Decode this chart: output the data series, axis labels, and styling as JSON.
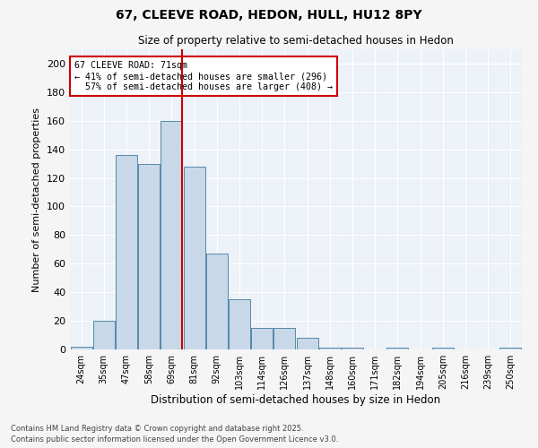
{
  "title1": "67, CLEEVE ROAD, HEDON, HULL, HU12 8PY",
  "title2": "Size of property relative to semi-detached houses in Hedon",
  "xlabel": "Distribution of semi-detached houses by size in Hedon",
  "ylabel": "Number of semi-detached properties",
  "categories": [
    "24sqm",
    "35sqm",
    "47sqm",
    "58sqm",
    "69sqm",
    "81sqm",
    "92sqm",
    "103sqm",
    "114sqm",
    "126sqm",
    "137sqm",
    "148sqm",
    "160sqm",
    "171sqm",
    "182sqm",
    "194sqm",
    "205sqm",
    "216sqm",
    "239sqm",
    "250sqm"
  ],
  "values": [
    2,
    20,
    136,
    130,
    160,
    128,
    67,
    35,
    15,
    15,
    8,
    1,
    1,
    0,
    1,
    0,
    1,
    0,
    0,
    1
  ],
  "bar_color": "#c8d8e8",
  "bar_edge_color": "#5588aa",
  "property_bin_index": 4,
  "property_label": "67 CLEEVE ROAD: 71sqm",
  "smaller_pct": 41,
  "smaller_count": 296,
  "larger_pct": 57,
  "larger_count": 408,
  "annotation_box_color": "#cc0000",
  "vline_color": "#cc0000",
  "ylim": [
    0,
    210
  ],
  "yticks": [
    0,
    20,
    40,
    60,
    80,
    100,
    120,
    140,
    160,
    180,
    200
  ],
  "bg_color": "#ecf2f8",
  "grid_color": "#ffffff",
  "footer1": "Contains HM Land Registry data © Crown copyright and database right 2025.",
  "footer2": "Contains public sector information licensed under the Open Government Licence v3.0."
}
